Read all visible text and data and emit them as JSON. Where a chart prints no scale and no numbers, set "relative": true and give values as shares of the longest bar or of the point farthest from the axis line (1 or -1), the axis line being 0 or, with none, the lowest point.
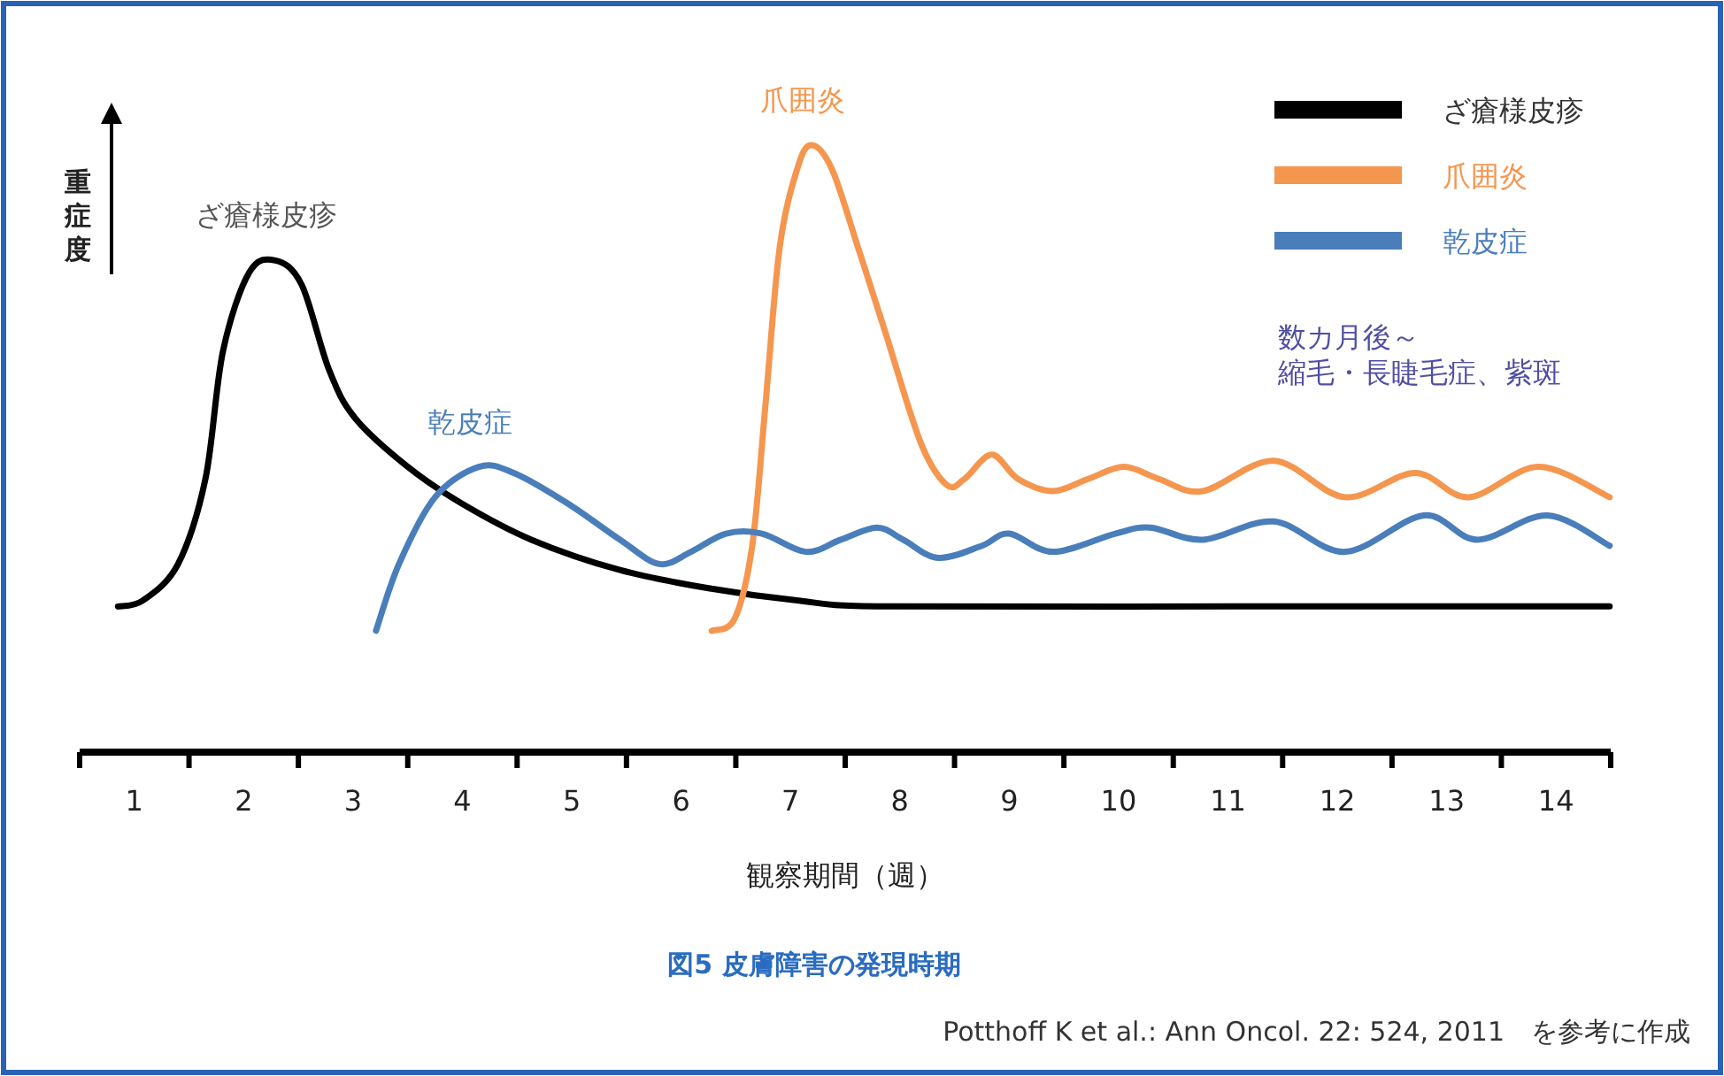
{
  "chart_data": {
    "type": "line",
    "relative": true,
    "title": "図5 皮膚障害の発現時期",
    "xlabel": "観察期間（週）",
    "ylabel": "重症度",
    "legend": "top right",
    "xlim": [
      0.5,
      14.5
    ],
    "xticks": [
      {
        "value": 0.5,
        "label": null
      },
      {
        "value": 1,
        "label": "1"
      },
      {
        "value": 1.5,
        "label": null
      },
      {
        "value": 2,
        "label": "2"
      },
      {
        "value": 2.5,
        "label": null
      },
      {
        "value": 3,
        "label": "3"
      },
      {
        "value": 3.5,
        "label": null
      },
      {
        "value": 4,
        "label": "4"
      },
      {
        "value": 4.5,
        "label": null
      },
      {
        "value": 5,
        "label": "5"
      },
      {
        "value": 5.5,
        "label": null
      },
      {
        "value": 6,
        "label": "6"
      },
      {
        "value": 6.5,
        "label": null
      },
      {
        "value": 7,
        "label": "7"
      },
      {
        "value": 7.5,
        "label": null
      },
      {
        "value": 8,
        "label": "8"
      },
      {
        "value": 8.5,
        "label": null
      },
      {
        "value": 9,
        "label": "9"
      },
      {
        "value": 9.5,
        "label": null
      },
      {
        "value": 10,
        "label": "10"
      },
      {
        "value": 10.5,
        "label": null
      },
      {
        "value": 11,
        "label": "11"
      },
      {
        "value": 11.5,
        "label": null
      },
      {
        "value": 12,
        "label": "12"
      },
      {
        "value": 12.5,
        "label": null
      },
      {
        "value": 13,
        "label": "13"
      },
      {
        "value": 13.5,
        "label": null
      },
      {
        "value": 14,
        "label": "14"
      },
      {
        "value": 14.5,
        "label": null
      }
    ],
    "series": [
      {
        "name": "ざ瘡様皮疹",
        "color": "#000000",
        "x": [
          0.85,
          1.08,
          1.4,
          1.65,
          1.81,
          2.05,
          2.29,
          2.53,
          2.78,
          3.02,
          3.5,
          3.99,
          4.63,
          5.44,
          6.25,
          7.06,
          7.87,
          11.0,
          14.49
        ],
        "values": [
          0.24,
          0.25,
          0.31,
          0.45,
          0.66,
          0.79,
          0.81,
          0.77,
          0.63,
          0.55,
          0.47,
          0.41,
          0.35,
          0.3,
          0.27,
          0.25,
          0.24,
          0.24,
          0.24
        ]
      },
      {
        "name": "爪囲炎",
        "color": "#f5964f",
        "x": [
          6.28,
          6.49,
          6.65,
          6.77,
          6.9,
          7.06,
          7.19,
          7.38,
          7.62,
          7.87,
          8.19,
          8.43,
          8.59,
          8.84,
          9.08,
          9.4,
          9.72,
          10.05,
          10.37,
          10.77,
          11.42,
          12.07,
          12.71,
          13.2,
          13.84,
          14.49
        ],
        "values": [
          0.2,
          0.22,
          0.34,
          0.57,
          0.83,
          0.96,
          1,
          0.96,
          0.83,
          0.69,
          0.51,
          0.44,
          0.45,
          0.49,
          0.45,
          0.43,
          0.45,
          0.47,
          0.45,
          0.43,
          0.48,
          0.42,
          0.46,
          0.42,
          0.47,
          0.42
        ]
      },
      {
        "name": "乾皮症",
        "color": "#4a7ebb",
        "x": [
          3.21,
          3.42,
          3.75,
          4.15,
          4.47,
          4.96,
          5.44,
          5.8,
          6.09,
          6.41,
          6.74,
          7.14,
          7.46,
          7.79,
          8.03,
          8.35,
          8.75,
          9.0,
          9.4,
          9.97,
          10.29,
          10.77,
          11.42,
          12.07,
          12.79,
          13.28,
          13.92,
          14.49
        ],
        "values": [
          0.2,
          0.31,
          0.42,
          0.47,
          0.46,
          0.41,
          0.35,
          0.31,
          0.33,
          0.36,
          0.36,
          0.33,
          0.35,
          0.37,
          0.35,
          0.32,
          0.34,
          0.36,
          0.33,
          0.36,
          0.37,
          0.35,
          0.38,
          0.33,
          0.39,
          0.35,
          0.39,
          0.34
        ]
      }
    ],
    "annotations": [
      {
        "text": "ざ瘡様皮疹",
        "x": 2.29,
        "y": 0.81
      },
      {
        "text": "乾皮症",
        "x": 4.15,
        "y": 0.47
      },
      {
        "text": "爪囲炎",
        "x": 7.19,
        "y": 1
      },
      "数カ月後～",
      "縮毛・長睫毛症、紫斑",
      "Potthoff K et al.: Ann Oncol. 22: 524, 2011　を参考に作成"
    ]
  }
}
